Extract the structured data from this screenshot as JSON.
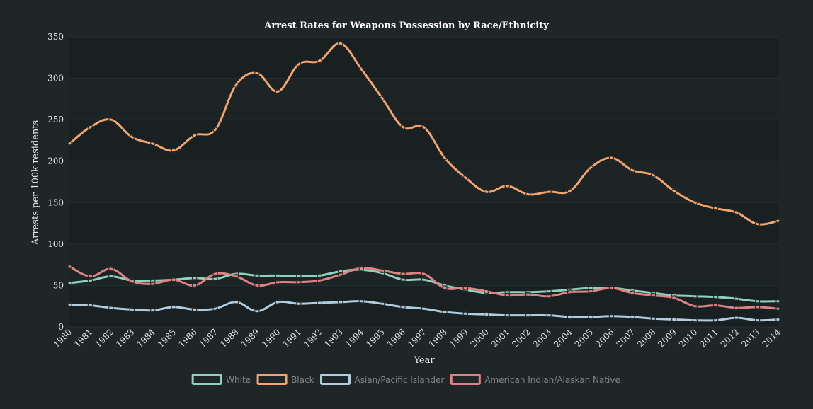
{
  "chart_data": {
    "type": "line",
    "title": "Arrest Rates for Weapons Possession by Race/Ethnicity",
    "xlabel": "Year",
    "ylabel": "Arrests per 100k residents",
    "ylim": [
      0,
      350
    ],
    "yticks": [
      0,
      50,
      100,
      150,
      200,
      250,
      300,
      350
    ],
    "grid": true,
    "legend_position": "bottom",
    "x": [
      1980,
      1981,
      1982,
      1983,
      1984,
      1985,
      1986,
      1987,
      1988,
      1989,
      1990,
      1991,
      1992,
      1993,
      1994,
      1995,
      1996,
      1997,
      1998,
      1999,
      2000,
      2001,
      2002,
      2003,
      2004,
      2005,
      2006,
      2007,
      2008,
      2009,
      2010,
      2011,
      2012,
      2013,
      2014
    ],
    "series": [
      {
        "name": "White",
        "color": "#8fd1bb",
        "values": [
          53,
          56,
          61,
          56,
          56,
          57,
          59,
          58,
          64,
          62,
          62,
          61,
          62,
          67,
          69,
          65,
          57,
          57,
          50,
          45,
          41,
          42,
          42,
          43,
          45,
          47,
          47,
          44,
          41,
          38,
          37,
          36,
          34,
          31,
          31
        ]
      },
      {
        "name": "Black",
        "color": "#f4a36b",
        "values": [
          221,
          241,
          250,
          229,
          221,
          213,
          231,
          238,
          292,
          306,
          284,
          317,
          321,
          342,
          311,
          276,
          241,
          241,
          204,
          180,
          163,
          170,
          160,
          163,
          164,
          192,
          204,
          189,
          183,
          164,
          150,
          143,
          138,
          124,
          128
        ]
      },
      {
        "name": "Asian/Pacific Islander",
        "color": "#b0cde0",
        "values": [
          27,
          26,
          23,
          21,
          20,
          24,
          21,
          22,
          30,
          19,
          30,
          28,
          29,
          30,
          31,
          28,
          24,
          22,
          18,
          16,
          15,
          14,
          14,
          14,
          12,
          12,
          13,
          12,
          10,
          9,
          8,
          8,
          11,
          8,
          9
        ]
      },
      {
        "name": "American Indian/Alaskan Native",
        "color": "#e08285",
        "values": [
          73,
          61,
          70,
          55,
          52,
          57,
          50,
          64,
          61,
          50,
          54,
          54,
          56,
          63,
          71,
          68,
          64,
          64,
          47,
          47,
          43,
          38,
          39,
          37,
          42,
          43,
          47,
          41,
          38,
          35,
          25,
          26,
          23,
          24,
          22
        ]
      }
    ]
  }
}
